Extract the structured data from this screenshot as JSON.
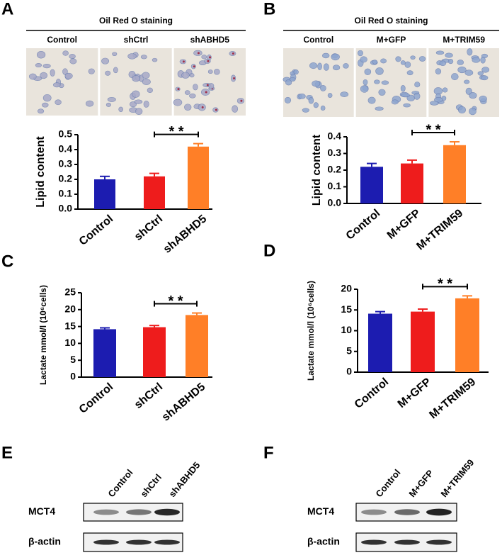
{
  "panel_labels": [
    "A",
    "B",
    "C",
    "D",
    "E",
    "F"
  ],
  "staining": [
    {
      "title": "Oil Red O staining",
      "groups": [
        "Control",
        "shCtrl",
        "shABHD5"
      ]
    },
    {
      "title": "Oil Red O staining",
      "groups": [
        "Control",
        "M+GFP",
        "M+TRIM59"
      ]
    }
  ],
  "chart_data": [
    {
      "type": "bar",
      "ylabel": "Lipid content",
      "categories": [
        "Control",
        "shCtrl",
        "shABHD5"
      ],
      "values": [
        0.2,
        0.22,
        0.42
      ],
      "errors": [
        0.02,
        0.02,
        0.02
      ],
      "colors": [
        "#1c1cb0",
        "#ee1c1c",
        "#ff7f27"
      ],
      "ylim": [
        0,
        0.5
      ],
      "yticks": [
        {
          "value": 0,
          "label": "0.0"
        },
        0.1,
        0.2,
        0.3,
        0.4,
        0.5
      ],
      "significance": {
        "label": "* *",
        "pair": [
          1,
          2
        ]
      }
    },
    {
      "type": "bar",
      "ylabel": "Lipid content",
      "categories": [
        "Control",
        "M+GFP",
        "M+TRIM59"
      ],
      "values": [
        0.22,
        0.24,
        0.35
      ],
      "errors": [
        0.02,
        0.02,
        0.02
      ],
      "colors": [
        "#1c1cb0",
        "#ee1c1c",
        "#ff7f27"
      ],
      "ylim": [
        0,
        0.4
      ],
      "yticks": [
        {
          "value": 0,
          "label": "0.0"
        },
        0.1,
        0.2,
        0.3,
        0.4
      ],
      "significance": {
        "label": "* *",
        "pair": [
          1,
          2
        ]
      }
    },
    {
      "type": "bar",
      "ylabel": "Lactate mmol/l (10⁶cells)",
      "categories": [
        "Control",
        "shCtrl",
        "shABHD5"
      ],
      "values": [
        14.2,
        14.8,
        18.4
      ],
      "errors": [
        0.4,
        0.5,
        0.6
      ],
      "colors": [
        "#1c1cb0",
        "#ee1c1c",
        "#ff7f27"
      ],
      "ylim": [
        0,
        25
      ],
      "yticks": [
        0,
        5,
        10,
        15,
        20,
        25
      ],
      "significance": {
        "label": "* *",
        "pair": [
          1,
          2
        ]
      }
    },
    {
      "type": "bar",
      "ylabel": "Lactate mmol/l (10⁶cells)",
      "categories": [
        "Control",
        "M+GFP",
        "M+TRIM59"
      ],
      "values": [
        14.1,
        14.6,
        17.8
      ],
      "errors": [
        0.5,
        0.6,
        0.6
      ],
      "colors": [
        "#1c1cb0",
        "#ee1c1c",
        "#ff7f27"
      ],
      "ylim": [
        0,
        20
      ],
      "yticks": [
        0,
        5,
        10,
        15,
        20
      ],
      "significance": {
        "label": "* *",
        "pair": [
          1,
          2
        ]
      }
    }
  ],
  "blots": [
    {
      "lanes": [
        "Control",
        "shCtrl",
        "shABHD5"
      ],
      "rows": [
        "MCT4",
        "β-actin"
      ]
    },
    {
      "lanes": [
        "Control",
        "M+GFP",
        "M+TRIM59"
      ],
      "rows": [
        "MCT4",
        "β-actin"
      ]
    }
  ]
}
